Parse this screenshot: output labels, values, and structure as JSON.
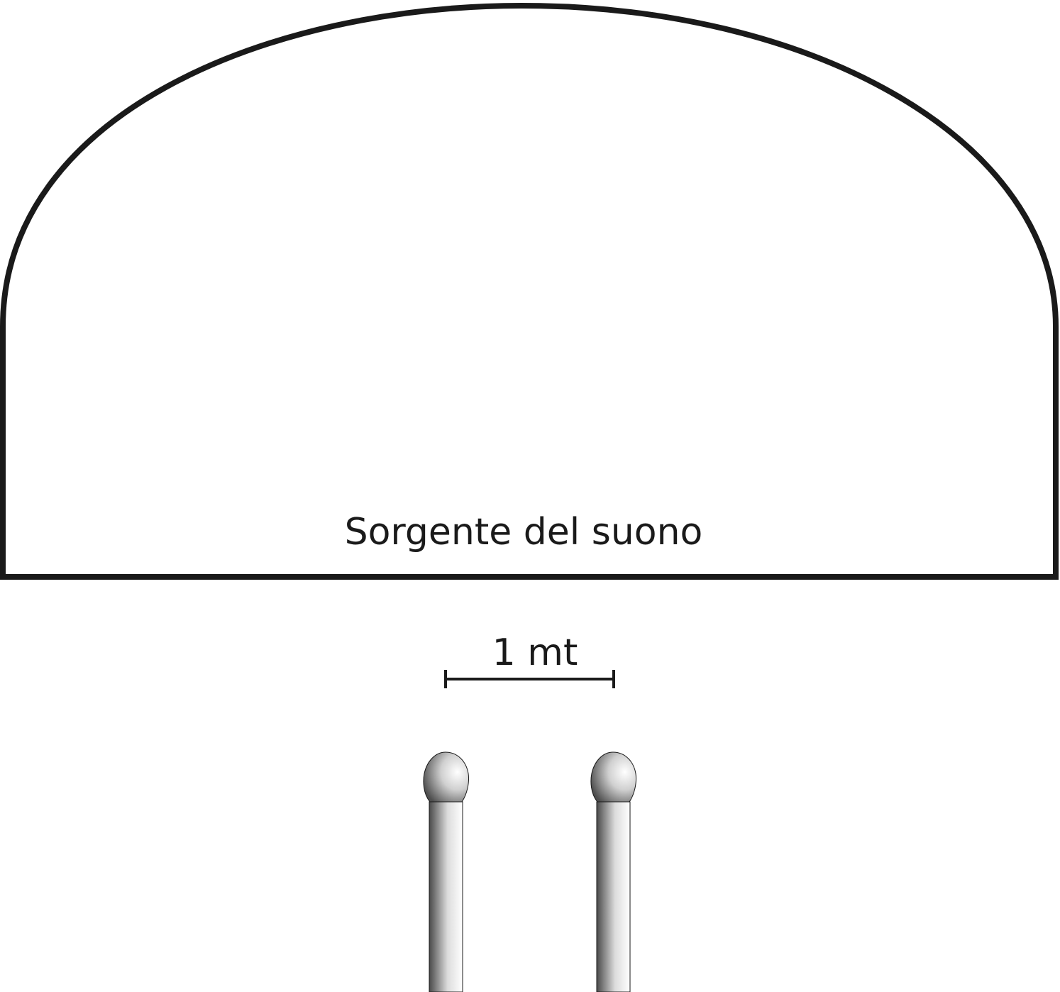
{
  "source_label": "Sorgente del suono",
  "distance_label": "1 mt",
  "microphones": [
    {
      "id": "left"
    },
    {
      "id": "right"
    }
  ],
  "colors": {
    "outline": "#1a1a1a",
    "background": "#ffffff",
    "mic_dark": "#4a4a4a",
    "mic_light": "#ffffff"
  }
}
